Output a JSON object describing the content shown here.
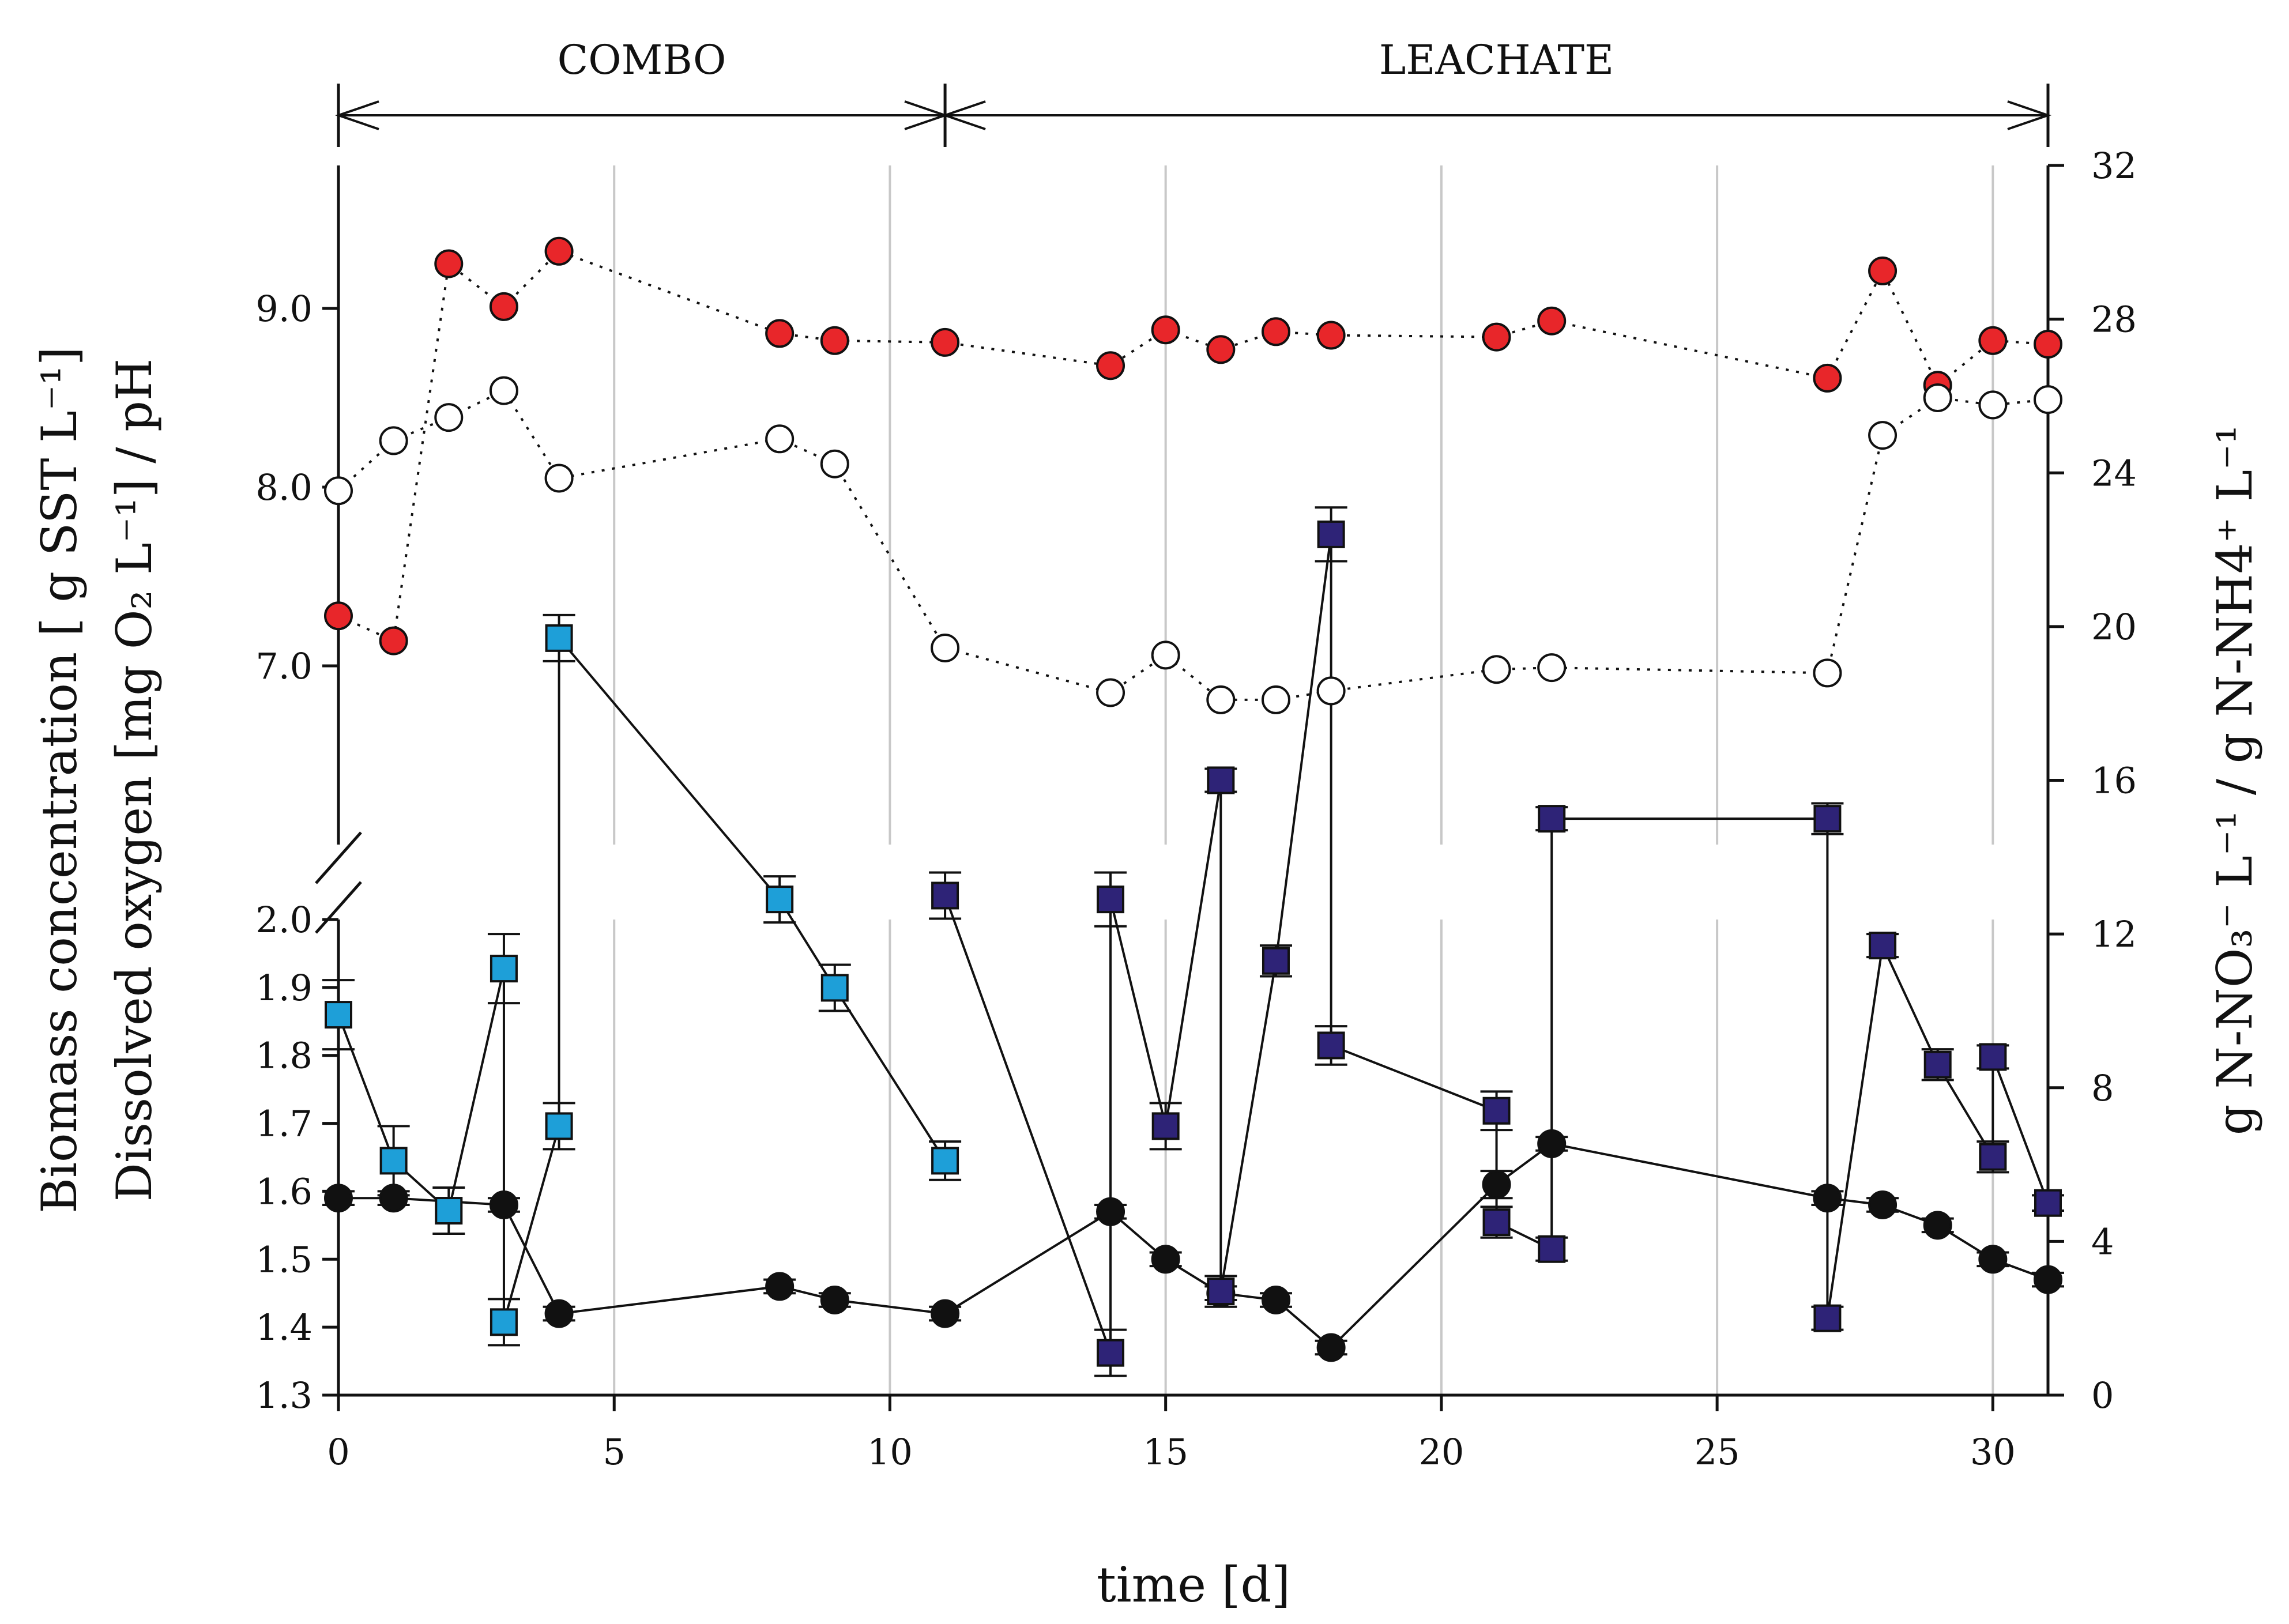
{
  "chart_data": {
    "type": "scatter",
    "xlabel": "time [d]",
    "left_ylabel_lines": [
      "Biomass concentration [ g SST L⁻¹]",
      "Dissolved oxygen [mg O₂ L⁻¹] / pH"
    ],
    "right_ylabel": "g N-NO₃⁻ L⁻¹ / g N-NH4⁺ L⁻¹",
    "phases": [
      {
        "label": "COMBO",
        "start": 0,
        "end": 11
      },
      {
        "label": "LEACHATE",
        "start": 11,
        "end": 31
      }
    ],
    "x_range": [
      0,
      31
    ],
    "x_ticks": [
      0,
      5,
      10,
      15,
      20,
      25,
      30
    ],
    "x_tick_labels": [
      "0",
      "5",
      "10",
      "15",
      "20",
      "25",
      "30"
    ],
    "left_lower_range": [
      1.3,
      2.0
    ],
    "left_lower_ticks": [
      1.3,
      1.4,
      1.5,
      1.6,
      1.7,
      1.8,
      1.9,
      2.0
    ],
    "left_lower_tick_labels": [
      "1.3",
      "1.4",
      "1.5",
      "1.6",
      "1.7",
      "1.8",
      "1.9",
      "2.0"
    ],
    "left_upper_range": [
      6.0,
      9.8
    ],
    "left_upper_ticks": [
      7.0,
      8.0,
      9.0
    ],
    "left_upper_tick_labels": [
      "7.0",
      "8.0",
      "9.0"
    ],
    "right_range": [
      0,
      32
    ],
    "right_ticks": [
      0,
      4,
      8,
      12,
      16,
      20,
      24,
      28,
      32
    ],
    "right_tick_labels": [
      "0",
      "4",
      "8",
      "12",
      "16",
      "20",
      "24",
      "28",
      "32"
    ],
    "colors": {
      "ph": "#e8262a",
      "do": "#ffffff",
      "biomass": "#111111",
      "combo_sq": "#1e9fd8",
      "leach_sq": "#2e2377"
    },
    "series": [
      {
        "name": "pH",
        "axis": "left_upper",
        "marker": "circle-red",
        "line": "dotted",
        "x": [
          0,
          1,
          2,
          3,
          4,
          8,
          9,
          11,
          14,
          15,
          16,
          17,
          18,
          21,
          22,
          27,
          28,
          29,
          30,
          31
        ],
        "y": [
          7.28,
          7.14,
          9.25,
          9.01,
          9.32,
          8.86,
          8.82,
          8.81,
          8.68,
          8.88,
          8.77,
          8.87,
          8.85,
          8.84,
          8.93,
          8.61,
          9.21,
          8.57,
          8.82,
          8.8
        ]
      },
      {
        "name": "Dissolved oxygen",
        "axis": "left_upper",
        "marker": "circle-open",
        "line": "dotted",
        "x": [
          0,
          1,
          2,
          3,
          4,
          8,
          9,
          11,
          14,
          15,
          16,
          17,
          18,
          21,
          22,
          27,
          28,
          29,
          30,
          31
        ],
        "y": [
          7.98,
          8.26,
          8.39,
          8.54,
          8.05,
          8.27,
          8.13,
          7.1,
          6.85,
          7.06,
          6.81,
          6.81,
          6.86,
          6.98,
          6.99,
          6.96,
          8.29,
          8.5,
          8.46,
          8.49
        ]
      },
      {
        "name": "Biomass concentration",
        "axis": "left_lower",
        "marker": "circle-black",
        "line": "solid",
        "x": [
          0,
          1,
          3,
          4,
          8,
          9,
          11,
          14,
          15,
          16,
          17,
          18,
          21,
          22,
          27,
          28,
          29,
          30,
          31
        ],
        "y": [
          1.59,
          1.59,
          1.58,
          1.42,
          1.46,
          1.44,
          1.42,
          1.57,
          1.5,
          1.45,
          1.44,
          1.37,
          1.61,
          1.67,
          1.59,
          1.58,
          1.55,
          1.5,
          1.47
        ],
        "err": [
          0.01,
          0.01,
          0.01,
          0.01,
          0.01,
          0.01,
          0.01,
          0.01,
          0.01,
          0.01,
          0.01,
          0.01,
          0.02,
          0.01,
          0.01,
          0.01,
          0.01,
          0.01,
          0.01
        ]
      },
      {
        "name": "N-NO3 / N-NH4 (COMBO)",
        "axis": "right",
        "marker": "square-lightblue",
        "line": "solid",
        "x": [
          0,
          1,
          2,
          3,
          3,
          4,
          4,
          8,
          9,
          11
        ],
        "y": [
          9.9,
          6.1,
          4.8,
          11.1,
          1.9,
          7.0,
          19.7,
          12.9,
          10.6,
          6.1
        ],
        "err": [
          0.9,
          0.9,
          0.6,
          0.9,
          0.6,
          0.6,
          0.6,
          0.6,
          0.6,
          0.5
        ]
      },
      {
        "name": "N-NO3 / N-NH4 (LEACHATE)",
        "axis": "right",
        "marker": "square-darkblue",
        "line": "solid",
        "x": [
          11,
          14,
          14,
          15,
          16,
          16,
          17,
          18,
          18,
          21,
          21,
          22,
          22,
          27,
          27,
          28,
          29,
          30,
          30,
          31
        ],
        "y": [
          13.0,
          1.1,
          12.9,
          7.0,
          16.0,
          2.7,
          11.3,
          22.4,
          9.1,
          7.4,
          4.5,
          3.8,
          15.0,
          15.0,
          2.0,
          11.7,
          8.6,
          6.2,
          8.8,
          5.0
        ],
        "err": [
          0.6,
          0.6,
          0.7,
          0.6,
          0.3,
          0.4,
          0.4,
          0.7,
          0.5,
          0.5,
          0.4,
          0.3,
          0.3,
          0.4,
          0.3,
          0.3,
          0.4,
          0.4,
          0.3,
          0.2
        ]
      }
    ]
  }
}
